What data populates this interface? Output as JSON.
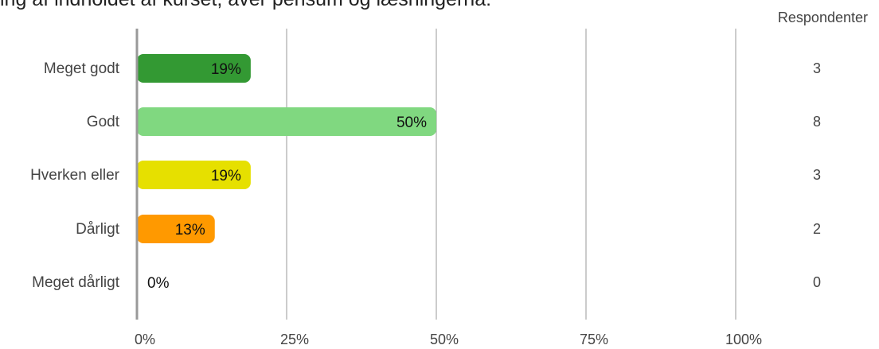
{
  "title": "ing af indholdet af kurset, aver pensum og læsningerna:",
  "respondents_header": "Respondenter",
  "colors": {
    "meget_godt": "#339933",
    "godt": "#80d880",
    "hverken_eller": "#e6e000",
    "daarligt": "#ff9900",
    "meget_daarligt": "#cc0000",
    "grid": "#999999",
    "axis": "#999999",
    "label": "#444444"
  },
  "chart_data": {
    "type": "bar",
    "orientation": "horizontal",
    "categories": [
      "Meget godt",
      "Godt",
      "Hverken eller",
      "Dårligt",
      "Meget dårligt"
    ],
    "values": [
      19,
      50,
      19,
      13,
      0
    ],
    "value_labels": [
      "19%",
      "50%",
      "19%",
      "13%",
      "0%"
    ],
    "respondents": [
      3,
      8,
      3,
      2,
      0
    ],
    "xlim": [
      0,
      100
    ],
    "xticks": [
      0,
      25,
      50,
      75,
      100
    ],
    "xtick_labels": [
      "0%",
      "25%",
      "50%",
      "75%",
      "100%"
    ],
    "grid": true
  }
}
